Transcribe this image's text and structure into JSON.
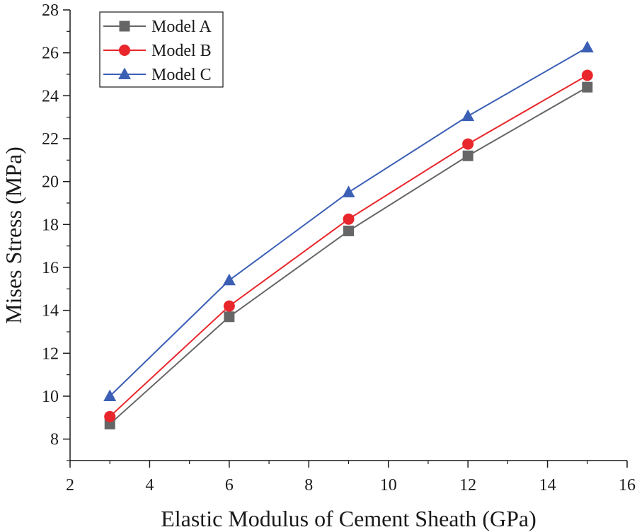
{
  "chart_data": {
    "type": "line",
    "title": "",
    "xlabel": "Elastic Modulus of Cement Sheath (GPa)",
    "ylabel": "Mises Stress (MPa)",
    "xlim": [
      2,
      16
    ],
    "ylim": [
      7,
      28
    ],
    "xticks": [
      2,
      4,
      6,
      8,
      10,
      12,
      14,
      16
    ],
    "yticks": [
      8,
      10,
      12,
      14,
      16,
      18,
      20,
      22,
      24,
      26,
      28
    ],
    "grid": false,
    "legend_position": "top-left",
    "x": [
      3,
      6,
      9,
      12,
      15
    ],
    "series": [
      {
        "name": "Model A",
        "marker": "square",
        "color": "#666666",
        "values": [
          8.7,
          13.7,
          17.7,
          21.2,
          24.4
        ]
      },
      {
        "name": "Model B",
        "marker": "circle",
        "color": "#e8262b",
        "values": [
          9.05,
          14.2,
          18.25,
          21.75,
          24.95
        ]
      },
      {
        "name": "Model C",
        "marker": "triangle",
        "color": "#3b5fb5",
        "values": [
          10.0,
          15.4,
          19.5,
          23.05,
          26.25
        ]
      }
    ]
  }
}
